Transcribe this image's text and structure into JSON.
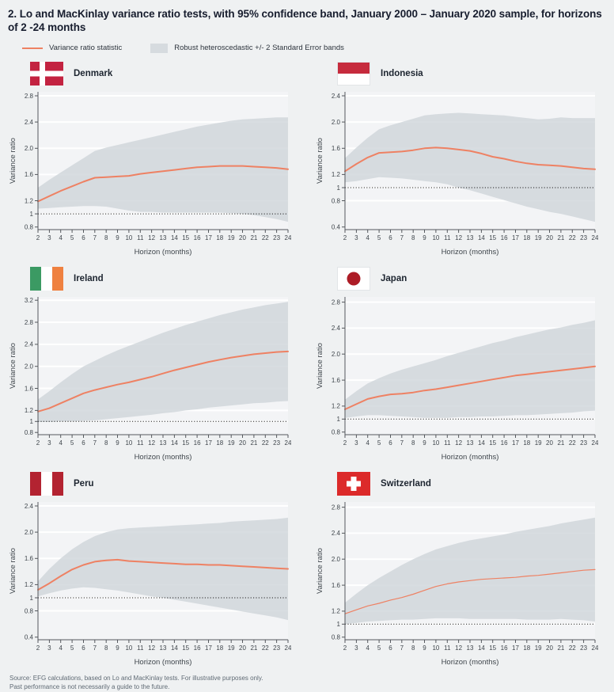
{
  "page": {
    "title": "2. Lo and MacKinlay variance ratio tests, with 95% confidence band, January 2000 – January 2020 sample, for horizons of 2 -24 months",
    "source_line1": "Source: EFG calculations, based on Lo and MacKinlay tests. For illustrative purposes only.",
    "source_line2": "Past performance is not necessarily a guide to the future."
  },
  "legend": {
    "line_label": "Variance ratio statistic",
    "band_label": "Robust heteroscedastic +/- 2 Standard Error bands"
  },
  "colors": {
    "page_bg": "#eff1f2",
    "plot_bg": "#f3f4f6",
    "grid": "#ffffff",
    "band": "#ced4d9",
    "line": "#ee8163",
    "reference": "#1b1b1b",
    "axis": "#54585d",
    "tick_text": "#3f464c"
  },
  "axis": {
    "xlabel": "Horizon (months)",
    "ylabel": "Variance ratio",
    "x_ticks": [
      2,
      3,
      4,
      5,
      6,
      7,
      8,
      9,
      10,
      11,
      12,
      13,
      14,
      15,
      16,
      17,
      18,
      19,
      20,
      21,
      22,
      23,
      24
    ]
  },
  "chart_data": [
    {
      "type": "line",
      "country": "Denmark",
      "flag": "denmark-flag",
      "x": [
        2,
        3,
        4,
        5,
        6,
        7,
        8,
        9,
        10,
        11,
        12,
        13,
        14,
        15,
        16,
        17,
        18,
        19,
        20,
        21,
        22,
        23,
        24
      ],
      "series": [
        {
          "name": "Variance ratio statistic",
          "values": [
            1.19,
            1.27,
            1.35,
            1.42,
            1.49,
            1.55,
            1.56,
            1.57,
            1.58,
            1.61,
            1.63,
            1.65,
            1.67,
            1.69,
            1.71,
            1.72,
            1.73,
            1.73,
            1.73,
            1.72,
            1.71,
            1.7,
            1.68
          ]
        },
        {
          "name": "Upper +2SE band",
          "values": [
            1.4,
            1.52,
            1.63,
            1.74,
            1.85,
            1.96,
            2.01,
            2.05,
            2.09,
            2.13,
            2.17,
            2.21,
            2.25,
            2.29,
            2.33,
            2.36,
            2.39,
            2.42,
            2.44,
            2.45,
            2.46,
            2.47,
            2.47
          ]
        },
        {
          "name": "Lower -2SE band",
          "values": [
            1.08,
            1.09,
            1.1,
            1.11,
            1.12,
            1.12,
            1.11,
            1.08,
            1.05,
            1.03,
            1.03,
            1.02,
            1.02,
            1.02,
            1.02,
            1.02,
            1.02,
            1.01,
            1.0,
            0.98,
            0.95,
            0.92,
            0.88
          ]
        }
      ],
      "yticks": [
        "0.8",
        "1",
        "1.2",
        "1.6",
        "2.0",
        "2.4",
        "2.8"
      ],
      "ylim": [
        0.76,
        2.86
      ],
      "reference_line": 1,
      "line_width": 2
    },
    {
      "type": "line",
      "country": "Indonesia",
      "flag": "indonesia-flag",
      "x": [
        2,
        3,
        4,
        5,
        6,
        7,
        8,
        9,
        10,
        11,
        12,
        13,
        14,
        15,
        16,
        17,
        18,
        19,
        20,
        21,
        22,
        23,
        24
      ],
      "series": [
        {
          "name": "Variance ratio statistic",
          "values": [
            1.25,
            1.36,
            1.46,
            1.53,
            1.54,
            1.55,
            1.57,
            1.6,
            1.61,
            1.6,
            1.58,
            1.56,
            1.52,
            1.47,
            1.44,
            1.4,
            1.37,
            1.35,
            1.34,
            1.33,
            1.31,
            1.29,
            1.28
          ]
        },
        {
          "name": "Upper +2SE band",
          "values": [
            1.45,
            1.61,
            1.76,
            1.89,
            1.95,
            2.0,
            2.05,
            2.1,
            2.12,
            2.13,
            2.14,
            2.13,
            2.12,
            2.11,
            2.1,
            2.08,
            2.06,
            2.04,
            2.05,
            2.07,
            2.06,
            2.06,
            2.06
          ]
        },
        {
          "name": "Lower -2SE band",
          "values": [
            1.08,
            1.1,
            1.13,
            1.16,
            1.15,
            1.14,
            1.12,
            1.1,
            1.08,
            1.05,
            1.0,
            0.96,
            0.91,
            0.86,
            0.81,
            0.76,
            0.71,
            0.67,
            0.63,
            0.6,
            0.56,
            0.52,
            0.48
          ]
        }
      ],
      "yticks": [
        "0.4",
        "0.8",
        "1",
        "1.2",
        "1.6",
        "2.0",
        "2.4"
      ],
      "ylim": [
        0.36,
        2.46
      ],
      "reference_line": 1,
      "line_width": 2
    },
    {
      "type": "line",
      "country": "Ireland",
      "flag": "ireland-flag",
      "x": [
        2,
        3,
        4,
        5,
        6,
        7,
        8,
        9,
        10,
        11,
        12,
        13,
        14,
        15,
        16,
        17,
        18,
        19,
        20,
        21,
        22,
        23,
        24
      ],
      "series": [
        {
          "name": "Variance ratio statistic",
          "values": [
            1.18,
            1.24,
            1.33,
            1.42,
            1.51,
            1.57,
            1.62,
            1.67,
            1.71,
            1.76,
            1.81,
            1.87,
            1.93,
            1.98,
            2.03,
            2.08,
            2.12,
            2.16,
            2.19,
            2.22,
            2.24,
            2.26,
            2.27
          ]
        },
        {
          "name": "Upper +2SE band",
          "values": [
            1.4,
            1.55,
            1.71,
            1.86,
            2.0,
            2.1,
            2.2,
            2.29,
            2.37,
            2.45,
            2.53,
            2.61,
            2.68,
            2.75,
            2.81,
            2.87,
            2.93,
            2.98,
            3.03,
            3.07,
            3.11,
            3.14,
            3.17
          ]
        },
        {
          "name": "Lower -2SE band",
          "values": [
            0.99,
            0.99,
            1.0,
            1.0,
            1.01,
            1.02,
            1.04,
            1.06,
            1.08,
            1.1,
            1.12,
            1.15,
            1.17,
            1.2,
            1.22,
            1.25,
            1.27,
            1.29,
            1.31,
            1.33,
            1.34,
            1.36,
            1.37
          ]
        }
      ],
      "yticks": [
        "0.8",
        "1",
        "1.2",
        "1.6",
        "2.0",
        "2.4",
        "2.8",
        "3.2"
      ],
      "ylim": [
        0.76,
        3.26
      ],
      "reference_line": 1,
      "line_width": 2
    },
    {
      "type": "line",
      "country": "Japan",
      "flag": "japan-flag",
      "x": [
        2,
        3,
        4,
        5,
        6,
        7,
        8,
        9,
        10,
        11,
        12,
        13,
        14,
        15,
        16,
        17,
        18,
        19,
        20,
        21,
        22,
        23,
        24
      ],
      "series": [
        {
          "name": "Variance ratio statistic",
          "values": [
            1.15,
            1.23,
            1.31,
            1.35,
            1.38,
            1.39,
            1.41,
            1.44,
            1.46,
            1.49,
            1.52,
            1.55,
            1.58,
            1.61,
            1.64,
            1.67,
            1.69,
            1.71,
            1.73,
            1.75,
            1.77,
            1.79,
            1.81
          ]
        },
        {
          "name": "Upper +2SE band",
          "values": [
            1.3,
            1.43,
            1.55,
            1.63,
            1.7,
            1.76,
            1.81,
            1.86,
            1.91,
            1.97,
            2.02,
            2.07,
            2.12,
            2.17,
            2.21,
            2.26,
            2.3,
            2.34,
            2.38,
            2.41,
            2.45,
            2.48,
            2.52
          ]
        },
        {
          "name": "Lower -2SE band",
          "values": [
            1.02,
            1.04,
            1.06,
            1.06,
            1.05,
            1.04,
            1.03,
            1.02,
            1.02,
            1.02,
            1.03,
            1.03,
            1.04,
            1.04,
            1.05,
            1.06,
            1.06,
            1.07,
            1.08,
            1.09,
            1.1,
            1.12,
            1.13
          ]
        }
      ],
      "yticks": [
        "0.8",
        "1",
        "1.2",
        "1.6",
        "2.0",
        "2.4",
        "2.8"
      ],
      "ylim": [
        0.76,
        2.88
      ],
      "reference_line": 1,
      "line_width": 2
    },
    {
      "type": "line",
      "country": "Peru",
      "flag": "peru-flag",
      "x": [
        2,
        3,
        4,
        5,
        6,
        7,
        8,
        9,
        10,
        11,
        12,
        13,
        14,
        15,
        16,
        17,
        18,
        19,
        20,
        21,
        22,
        23,
        24
      ],
      "series": [
        {
          "name": "Variance ratio statistic",
          "values": [
            1.12,
            1.22,
            1.33,
            1.43,
            1.5,
            1.55,
            1.57,
            1.58,
            1.56,
            1.55,
            1.54,
            1.53,
            1.52,
            1.51,
            1.51,
            1.5,
            1.5,
            1.49,
            1.48,
            1.47,
            1.46,
            1.45,
            1.44
          ]
        },
        {
          "name": "Upper +2SE band",
          "values": [
            1.25,
            1.44,
            1.6,
            1.74,
            1.85,
            1.94,
            2.0,
            2.04,
            2.06,
            2.07,
            2.08,
            2.09,
            2.1,
            2.11,
            2.12,
            2.13,
            2.14,
            2.16,
            2.17,
            2.18,
            2.19,
            2.2,
            2.22
          ]
        },
        {
          "name": "Lower -2SE band",
          "values": [
            1.02,
            1.07,
            1.11,
            1.14,
            1.16,
            1.15,
            1.13,
            1.11,
            1.08,
            1.05,
            1.02,
            1.0,
            0.97,
            0.94,
            0.91,
            0.88,
            0.85,
            0.82,
            0.79,
            0.76,
            0.73,
            0.7,
            0.66
          ]
        }
      ],
      "yticks": [
        "0.4",
        "0.8",
        "1",
        "1.2",
        "1.6",
        "2.0",
        "2.4"
      ],
      "ylim": [
        0.36,
        2.46
      ],
      "reference_line": 1,
      "line_width": 2
    },
    {
      "type": "line",
      "country": "Switzerland",
      "flag": "switzerland-flag",
      "x": [
        2,
        3,
        4,
        5,
        6,
        7,
        8,
        9,
        10,
        11,
        12,
        13,
        14,
        15,
        16,
        17,
        18,
        19,
        20,
        21,
        22,
        23,
        24
      ],
      "series": [
        {
          "name": "Variance ratio statistic",
          "values": [
            1.16,
            1.22,
            1.28,
            1.32,
            1.37,
            1.41,
            1.46,
            1.52,
            1.58,
            1.62,
            1.65,
            1.67,
            1.69,
            1.7,
            1.71,
            1.72,
            1.74,
            1.75,
            1.77,
            1.79,
            1.81,
            1.83,
            1.84
          ]
        },
        {
          "name": "Upper +2SE band",
          "values": [
            1.33,
            1.47,
            1.6,
            1.71,
            1.81,
            1.91,
            2.0,
            2.08,
            2.15,
            2.2,
            2.25,
            2.29,
            2.32,
            2.35,
            2.38,
            2.42,
            2.45,
            2.48,
            2.51,
            2.55,
            2.58,
            2.61,
            2.64
          ]
        },
        {
          "name": "Lower -2SE band",
          "values": [
            1.0,
            1.02,
            1.04,
            1.05,
            1.06,
            1.07,
            1.07,
            1.08,
            1.09,
            1.09,
            1.09,
            1.08,
            1.08,
            1.08,
            1.08,
            1.08,
            1.07,
            1.07,
            1.07,
            1.08,
            1.07,
            1.06,
            1.04
          ]
        }
      ],
      "yticks": [
        "0.8",
        "1",
        "1.2",
        "1.6",
        "2.0",
        "2.4",
        "2.8"
      ],
      "ylim": [
        0.76,
        2.88
      ],
      "reference_line": 1,
      "line_width": 1.2
    }
  ]
}
